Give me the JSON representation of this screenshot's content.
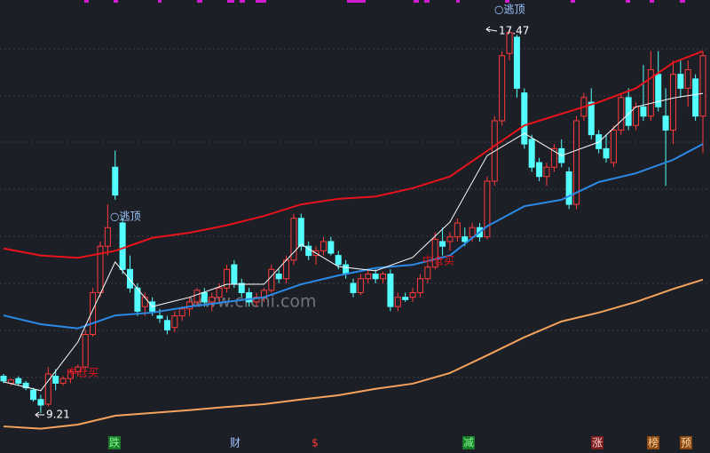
{
  "chart_data": {
    "type": "candlestick",
    "categories": [
      null,
      null,
      null,
      null,
      null,
      null,
      null,
      null,
      null,
      null,
      null,
      null,
      null,
      null,
      null,
      null,
      null,
      null,
      null,
      null,
      null,
      null,
      null,
      null,
      null,
      null,
      null,
      null,
      null,
      null,
      null,
      null,
      null,
      null,
      null,
      null,
      null,
      null,
      null,
      null,
      null,
      null,
      null,
      null,
      null,
      null,
      null,
      null,
      null,
      null,
      null,
      null,
      null,
      null,
      null,
      null,
      null,
      null,
      null,
      null,
      null,
      null,
      null,
      null,
      null,
      null,
      null,
      null,
      null,
      null,
      null,
      null,
      null,
      null,
      null,
      null,
      null,
      null,
      null,
      null,
      null,
      null,
      null,
      null,
      null,
      null,
      null,
      null,
      null,
      null,
      null,
      null,
      null,
      null,
      null
    ],
    "open": [
      10.0,
      9.85,
      9.95,
      9.85,
      9.7,
      9.5,
      9.4,
      10.0,
      9.85,
      9.95,
      10.1,
      10.2,
      10.9,
      11.8,
      12.8,
      14.5,
      13.3,
      12.3,
      11.9,
      11.5,
      11.6,
      11.3,
      11.2,
      11.05,
      11.3,
      11.45,
      11.6,
      11.8,
      11.6,
      11.7,
      11.9,
      12.4,
      12.0,
      11.8,
      11.6,
      11.7,
      11.85,
      12.2,
      12.1,
      12.5,
      13.4,
      12.8,
      12.6,
      12.7,
      12.9,
      12.6,
      12.4,
      12.0,
      11.8,
      12.1,
      12.2,
      12.1,
      12.2,
      11.5,
      11.7,
      11.7,
      11.8,
      12.1,
      12.35,
      12.9,
      12.9,
      13.0,
      13.0,
      13.0,
      13.2,
      13.0,
      14.2,
      15.5,
      16.95,
      17.3,
      16.1,
      15.1,
      14.6,
      14.3,
      14.5,
      14.9,
      14.4,
      13.7,
      15.6,
      15.9,
      15.2,
      14.9,
      14.6,
      15.3,
      16.0,
      15.4,
      15.8,
      15.6,
      16.5,
      15.6,
      15.3,
      16.5,
      16.2,
      16.4,
      15.6
    ],
    "high": [
      10.05,
      9.95,
      10.0,
      9.9,
      9.75,
      9.6,
      10.2,
      10.15,
      10.0,
      10.15,
      10.25,
      11.0,
      11.9,
      12.9,
      13.7,
      14.86,
      13.4,
      12.6,
      12.0,
      11.8,
      11.7,
      11.45,
      11.3,
      11.4,
      11.5,
      11.7,
      11.9,
      11.9,
      11.8,
      12.0,
      12.4,
      12.5,
      12.1,
      11.9,
      11.8,
      11.9,
      12.4,
      12.3,
      12.6,
      13.5,
      13.5,
      12.9,
      12.8,
      13.0,
      13.0,
      12.7,
      12.5,
      12.1,
      12.2,
      12.3,
      12.3,
      12.25,
      12.3,
      11.8,
      11.8,
      11.9,
      12.2,
      12.4,
      13.1,
      13.2,
      13.1,
      13.4,
      13.2,
      13.3,
      13.3,
      14.3,
      15.6,
      17.0,
      17.47,
      17.35,
      16.2,
      15.2,
      14.7,
      14.6,
      15.0,
      15.1,
      14.5,
      15.6,
      16.1,
      16.2,
      15.3,
      15.2,
      15.4,
      16.1,
      16.2,
      15.9,
      16.7,
      17.0,
      17.0,
      16.2,
      16.8,
      16.8,
      16.8,
      16.5,
      17.0
    ],
    "low": [
      9.85,
      9.8,
      9.8,
      9.7,
      9.45,
      9.21,
      9.35,
      9.7,
      9.8,
      9.85,
      10.0,
      10.15,
      10.85,
      11.7,
      12.6,
      13.8,
      12.2,
      11.8,
      11.3,
      11.3,
      11.3,
      11.15,
      10.9,
      10.95,
      11.2,
      11.3,
      11.5,
      11.5,
      11.4,
      11.6,
      11.8,
      11.9,
      11.7,
      11.5,
      11.5,
      11.6,
      11.8,
      12.0,
      12.0,
      12.4,
      12.7,
      12.5,
      12.4,
      12.6,
      12.6,
      12.3,
      12.1,
      11.7,
      11.75,
      12.0,
      12.0,
      12.0,
      11.4,
      11.4,
      11.6,
      11.6,
      11.7,
      12.0,
      12.3,
      12.6,
      12.7,
      12.9,
      12.8,
      12.9,
      12.9,
      12.95,
      14.1,
      15.4,
      16.8,
      16.0,
      14.9,
      14.4,
      14.2,
      14.1,
      14.4,
      14.5,
      13.6,
      13.6,
      15.5,
      15.1,
      14.8,
      14.6,
      14.5,
      15.2,
      15.3,
      15.3,
      15.5,
      15.5,
      15.7,
      14.1,
      15.0,
      16.0,
      15.8,
      15.5,
      14.8
    ],
    "close": [
      9.9,
      9.92,
      9.85,
      9.75,
      9.5,
      9.38,
      10.05,
      9.85,
      9.95,
      10.1,
      10.2,
      10.9,
      11.8,
      12.8,
      13.2,
      13.9,
      12.3,
      11.9,
      11.4,
      11.7,
      11.4,
      11.25,
      11.0,
      11.3,
      11.45,
      11.6,
      11.85,
      11.6,
      11.7,
      11.9,
      12.3,
      12.0,
      11.8,
      11.6,
      11.7,
      11.85,
      12.3,
      12.1,
      12.5,
      13.4,
      12.8,
      12.6,
      12.7,
      12.9,
      12.65,
      12.4,
      12.2,
      11.8,
      12.1,
      12.2,
      12.1,
      12.2,
      11.5,
      11.7,
      11.65,
      11.8,
      12.1,
      12.35,
      12.95,
      12.8,
      13.0,
      13.3,
      12.9,
      13.2,
      13.0,
      14.2,
      15.5,
      16.9,
      17.4,
      16.2,
      15.0,
      14.5,
      14.3,
      14.5,
      14.9,
      14.6,
      13.7,
      15.5,
      16.0,
      15.2,
      14.9,
      14.7,
      15.3,
      16.0,
      15.4,
      15.8,
      15.6,
      16.6,
      15.8,
      15.3,
      16.5,
      16.2,
      16.6,
      15.6,
      16.9
    ],
    "up_color": "#ff3b3b",
    "down_color": "#54ffff",
    "ylim": [
      8.73,
      18.1
    ],
    "lines": [
      {
        "color": "#e8131b",
        "x": [
          0,
          5,
          10,
          15,
          20,
          25,
          30,
          35,
          40,
          45,
          50,
          55,
          60,
          65,
          70,
          75,
          80,
          85,
          90,
          94
        ],
        "values": [
          12.75,
          12.6,
          12.55,
          12.7,
          12.98,
          13.09,
          13.25,
          13.45,
          13.7,
          13.82,
          13.87,
          14.05,
          14.3,
          14.85,
          15.4,
          15.65,
          15.9,
          16.2,
          16.75,
          17.0
        ]
      },
      {
        "color": "#2a8ae6",
        "x": [
          0,
          5,
          10,
          15,
          20,
          25,
          30,
          35,
          40,
          45,
          50,
          55,
          60,
          65,
          70,
          75,
          80,
          85,
          90,
          94
        ],
        "values": [
          11.31,
          11.12,
          11.03,
          11.31,
          11.37,
          11.5,
          11.6,
          11.7,
          11.98,
          12.17,
          12.33,
          12.4,
          12.6,
          13.23,
          13.66,
          13.8,
          14.18,
          14.37,
          14.66,
          15.0
        ]
      },
      {
        "color": "#f5a35c",
        "x": [
          0,
          5,
          10,
          15,
          20,
          25,
          30,
          35,
          40,
          45,
          50,
          55,
          60,
          65,
          70,
          75,
          80,
          85,
          90,
          94
        ],
        "values": [
          8.92,
          8.87,
          8.96,
          9.15,
          9.21,
          9.27,
          9.34,
          9.4,
          9.5,
          9.59,
          9.73,
          9.84,
          10.07,
          10.45,
          10.84,
          11.18,
          11.37,
          11.6,
          11.88,
          12.08
        ]
      },
      {
        "color": "#ffffff",
        "x": [
          0,
          5,
          10,
          15,
          20,
          25,
          30,
          35,
          40,
          45,
          50,
          55,
          60,
          65,
          70,
          75,
          80,
          85,
          90,
          94
        ],
        "values": [
          9.88,
          9.69,
          10.74,
          12.46,
          11.5,
          11.7,
          11.98,
          11.98,
          12.84,
          12.36,
          12.27,
          12.56,
          13.32,
          14.75,
          15.23,
          14.75,
          15.04,
          15.8,
          15.99,
          16.09
        ]
      }
    ],
    "annotations": [
      {
        "label": "○逃顶"
      },
      {
        "label": "○逃顶"
      },
      {
        "label": "17.47"
      },
      {
        "label": "9.21"
      },
      {
        "label": "中仓买"
      },
      {
        "label": "中仓买"
      }
    ],
    "watermark": "www.crchi.com",
    "signals": [
      "跌",
      "财",
      "$",
      "减",
      "涨",
      "榜",
      "预"
    ]
  }
}
